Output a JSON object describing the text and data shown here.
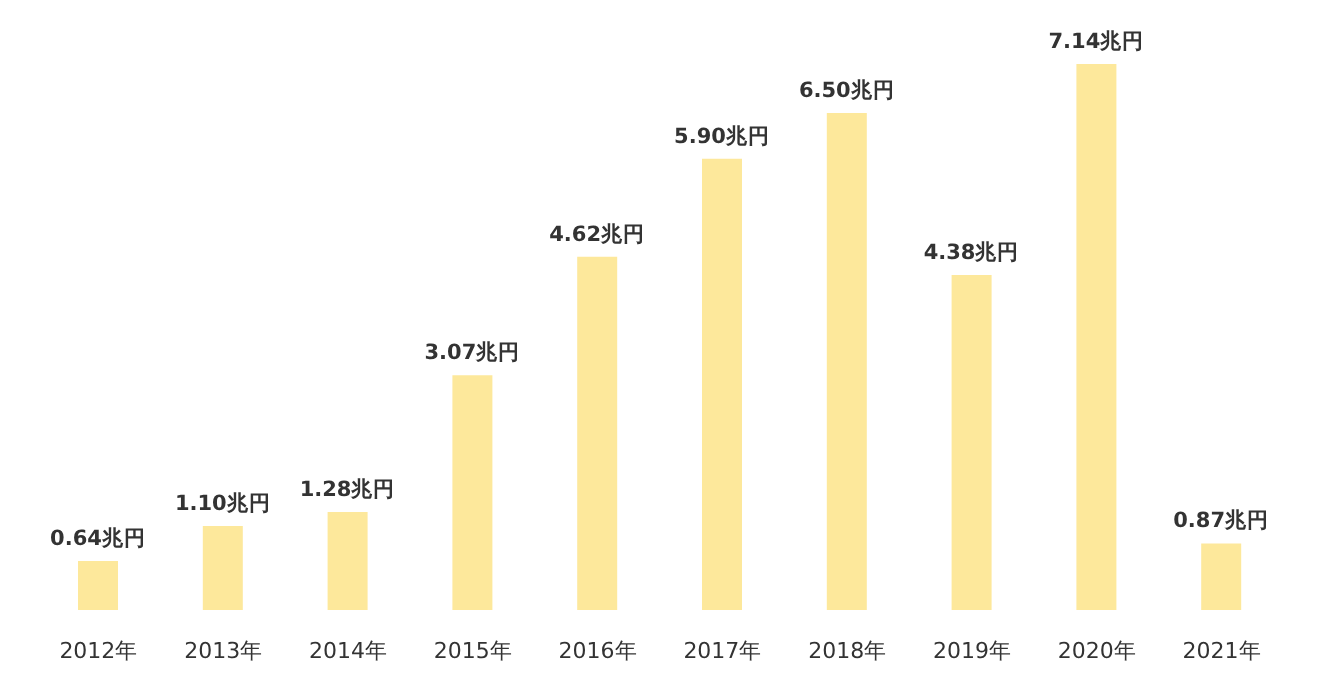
{
  "chart_data": {
    "type": "bar",
    "categories": [
      "2012年",
      "2013年",
      "2014年",
      "2015年",
      "2016年",
      "2017年",
      "2018年",
      "2019年",
      "2020年",
      "2021年"
    ],
    "values": [
      0.64,
      1.1,
      1.28,
      3.07,
      4.62,
      5.9,
      6.5,
      4.38,
      7.14,
      0.87
    ],
    "value_labels": [
      "0.64兆円",
      "1.10兆円",
      "1.28兆円",
      "3.07兆円",
      "4.62兆円",
      "5.90兆円",
      "6.50兆円",
      "4.38兆円",
      "7.14兆円",
      "0.87兆円"
    ],
    "color": "#fde89b",
    "grid": false,
    "legend": false
  }
}
